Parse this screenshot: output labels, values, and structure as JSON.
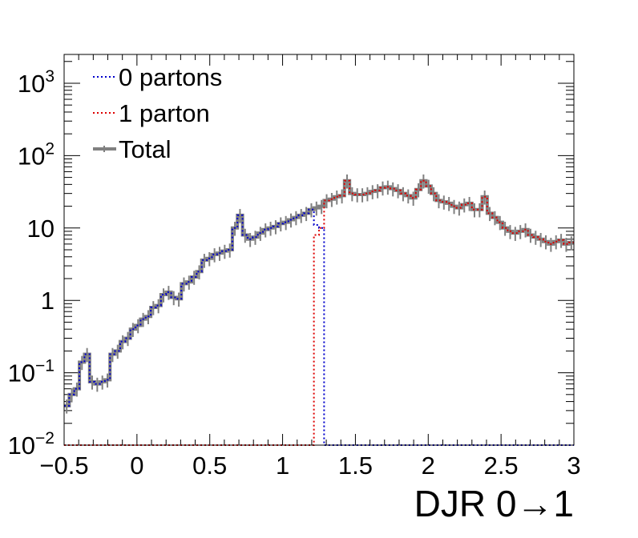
{
  "chart_data": {
    "type": "line",
    "xlabel": "DJR 0→1",
    "ylabel": "",
    "xlim": [
      -0.5,
      3.0
    ],
    "ylim": [
      0.01,
      2500
    ],
    "yscale": "log",
    "grid": false,
    "legend_position": "top-left",
    "x_ticks": [
      "−0.5",
      "0",
      "0.5",
      "1",
      "1.5",
      "2",
      "2.5",
      "3"
    ],
    "y_ticks": [
      {
        "value": 0.01,
        "base": "10",
        "exp": "−2"
      },
      {
        "value": 0.1,
        "base": "10",
        "exp": "−1"
      },
      {
        "value": 1,
        "base": "1",
        "exp": ""
      },
      {
        "value": 10,
        "base": "10",
        "exp": ""
      },
      {
        "value": 100,
        "base": "10",
        "exp": "2"
      },
      {
        "value": 1000,
        "base": "10",
        "exp": "3"
      }
    ],
    "bin_edges": [
      -0.5,
      -0.465,
      -0.43,
      -0.395,
      -0.36,
      -0.325,
      -0.29,
      -0.255,
      -0.22,
      -0.185,
      -0.15,
      -0.115,
      -0.08,
      -0.045,
      -0.01,
      0.025,
      0.06,
      0.095,
      0.13,
      0.165,
      0.2,
      0.235,
      0.27,
      0.305,
      0.34,
      0.375,
      0.41,
      0.445,
      0.48,
      0.515,
      0.55,
      0.585,
      0.62,
      0.655,
      0.69,
      0.725,
      0.76,
      0.795,
      0.83,
      0.865,
      0.9,
      0.935,
      0.97,
      1.005,
      1.04,
      1.075,
      1.11,
      1.145,
      1.18,
      1.215,
      1.25,
      1.285,
      1.32,
      1.355,
      1.39,
      1.425,
      1.46,
      1.495,
      1.53,
      1.565,
      1.6,
      1.635,
      1.67,
      1.705,
      1.74,
      1.775,
      1.81,
      1.845,
      1.88,
      1.915,
      1.95,
      1.985,
      2.02,
      2.055,
      2.09,
      2.125,
      2.16,
      2.195,
      2.23,
      2.265,
      2.3,
      2.335,
      2.37,
      2.405,
      2.44,
      2.475,
      2.51,
      2.545,
      2.58,
      2.615,
      2.65,
      2.685,
      2.72,
      2.755,
      2.79,
      2.825,
      2.86,
      2.895,
      2.93,
      2.965,
      3.0
    ],
    "series": [
      {
        "name": "0 partons",
        "color": "#0000cc",
        "style": "dotted",
        "values": [
          0.035,
          0.05,
          0.06,
          0.14,
          0.18,
          0.075,
          0.07,
          0.075,
          0.08,
          0.18,
          0.2,
          0.27,
          0.3,
          0.4,
          0.45,
          0.55,
          0.6,
          0.8,
          0.85,
          1.2,
          1.3,
          1.1,
          1.05,
          1.7,
          1.8,
          2.1,
          2.5,
          3.6,
          3.8,
          4.3,
          4.5,
          4.8,
          5.0,
          10.0,
          15.0,
          8.0,
          7.0,
          7.5,
          8.5,
          9.5,
          10.0,
          10.5,
          11.5,
          12.0,
          13.0,
          14.0,
          15.0,
          16.0,
          18.0,
          11.0,
          10.0,
          0.01,
          0.01,
          0.01,
          0.01,
          0.01,
          0.01,
          0.01,
          0.01,
          0.01,
          0.01,
          0.01,
          0.01,
          0.01,
          0.01,
          0.01,
          0.01,
          0.01,
          0.01,
          0.01,
          0.01,
          0.01,
          0.01,
          0.01,
          0.01,
          0.01,
          0.01,
          0.01,
          0.01,
          0.01,
          0.01,
          0.01,
          0.01,
          0.01,
          0.01,
          0.01,
          0.01,
          0.01,
          0.01,
          0.01,
          0.01,
          0.01,
          0.01,
          0.01,
          0.01,
          0.01,
          0.01,
          0.01,
          0.01,
          0.01
        ]
      },
      {
        "name": "1 parton",
        "color": "#dd0000",
        "style": "dotted",
        "values": [
          0.01,
          0.01,
          0.01,
          0.01,
          0.01,
          0.01,
          0.01,
          0.01,
          0.01,
          0.01,
          0.01,
          0.01,
          0.01,
          0.01,
          0.01,
          0.01,
          0.01,
          0.01,
          0.01,
          0.01,
          0.01,
          0.01,
          0.01,
          0.01,
          0.01,
          0.01,
          0.01,
          0.01,
          0.01,
          0.01,
          0.01,
          0.01,
          0.01,
          0.01,
          0.01,
          0.01,
          0.01,
          0.01,
          0.01,
          0.01,
          0.01,
          0.01,
          0.01,
          0.01,
          0.01,
          0.01,
          0.01,
          0.01,
          0.01,
          8.0,
          10.0,
          24.0,
          25.0,
          27.0,
          28.0,
          45.0,
          30.0,
          29.0,
          29.0,
          30.0,
          32.0,
          33.0,
          36.0,
          37.0,
          35.0,
          33.0,
          30.0,
          28.0,
          26.0,
          34.0,
          45.0,
          38.0,
          30.0,
          24.0,
          23.0,
          22.0,
          20.0,
          19.0,
          21.0,
          22.0,
          18.0,
          18.0,
          27.0,
          16.0,
          14.0,
          12.0,
          10.0,
          9.0,
          8.5,
          9.0,
          9.5,
          8.0,
          7.5,
          7.0,
          6.5,
          6.0,
          6.5,
          6.8,
          6.0,
          6.3
        ]
      },
      {
        "name": "Total",
        "color": "#808080",
        "style": "solid",
        "values": [
          0.035,
          0.05,
          0.06,
          0.14,
          0.18,
          0.075,
          0.07,
          0.075,
          0.08,
          0.18,
          0.2,
          0.27,
          0.3,
          0.4,
          0.45,
          0.55,
          0.6,
          0.8,
          0.85,
          1.2,
          1.3,
          1.1,
          1.05,
          1.7,
          1.8,
          2.1,
          2.5,
          3.6,
          3.8,
          4.3,
          4.5,
          4.8,
          5.0,
          10.0,
          15.0,
          8.0,
          7.0,
          7.5,
          8.5,
          9.5,
          10.0,
          10.5,
          11.5,
          12.0,
          13.0,
          14.0,
          15.0,
          16.0,
          18.0,
          19.0,
          20.0,
          24.0,
          25.0,
          27.0,
          28.0,
          45.0,
          30.0,
          29.0,
          29.0,
          30.0,
          32.0,
          33.0,
          36.0,
          37.0,
          35.0,
          33.0,
          30.0,
          28.0,
          26.0,
          34.0,
          45.0,
          38.0,
          30.0,
          24.0,
          23.0,
          22.0,
          20.0,
          19.0,
          21.0,
          22.0,
          18.0,
          18.0,
          27.0,
          16.0,
          14.0,
          12.0,
          10.0,
          9.0,
          8.5,
          9.0,
          9.5,
          8.0,
          7.5,
          7.0,
          6.5,
          6.0,
          6.5,
          6.8,
          6.0,
          6.3
        ]
      }
    ]
  }
}
